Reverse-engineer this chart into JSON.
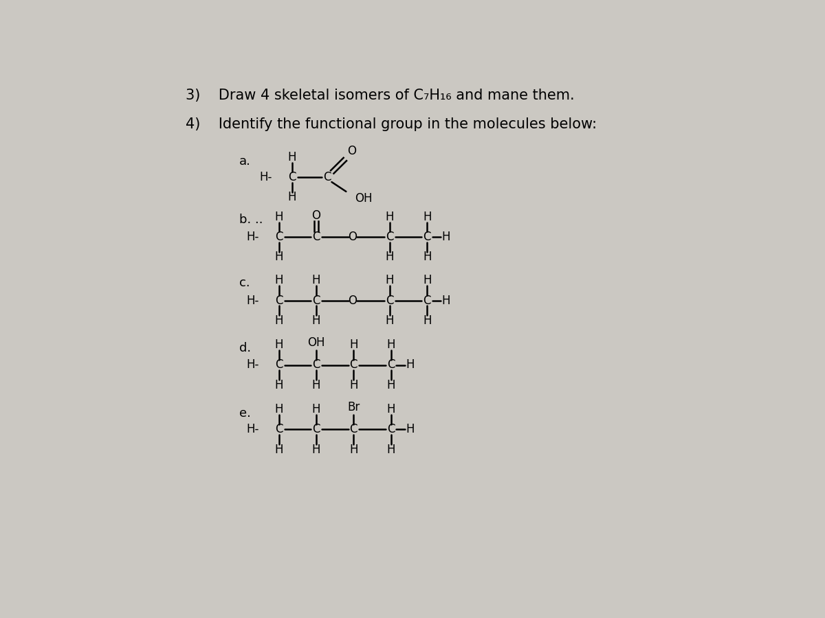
{
  "bg_color": "#cbc8c2",
  "text_color": "#000000",
  "title3": "3)    Draw 4 skeletal isomers of C₇H₁₆ and mane them.",
  "title4": "4)    Identify the functional group in the molecules below:",
  "label_a": "a.",
  "label_b": "b. ..",
  "label_c": "c.",
  "label_d": "d.",
  "label_e": "e.",
  "font_title": 15,
  "font_mol": 12
}
